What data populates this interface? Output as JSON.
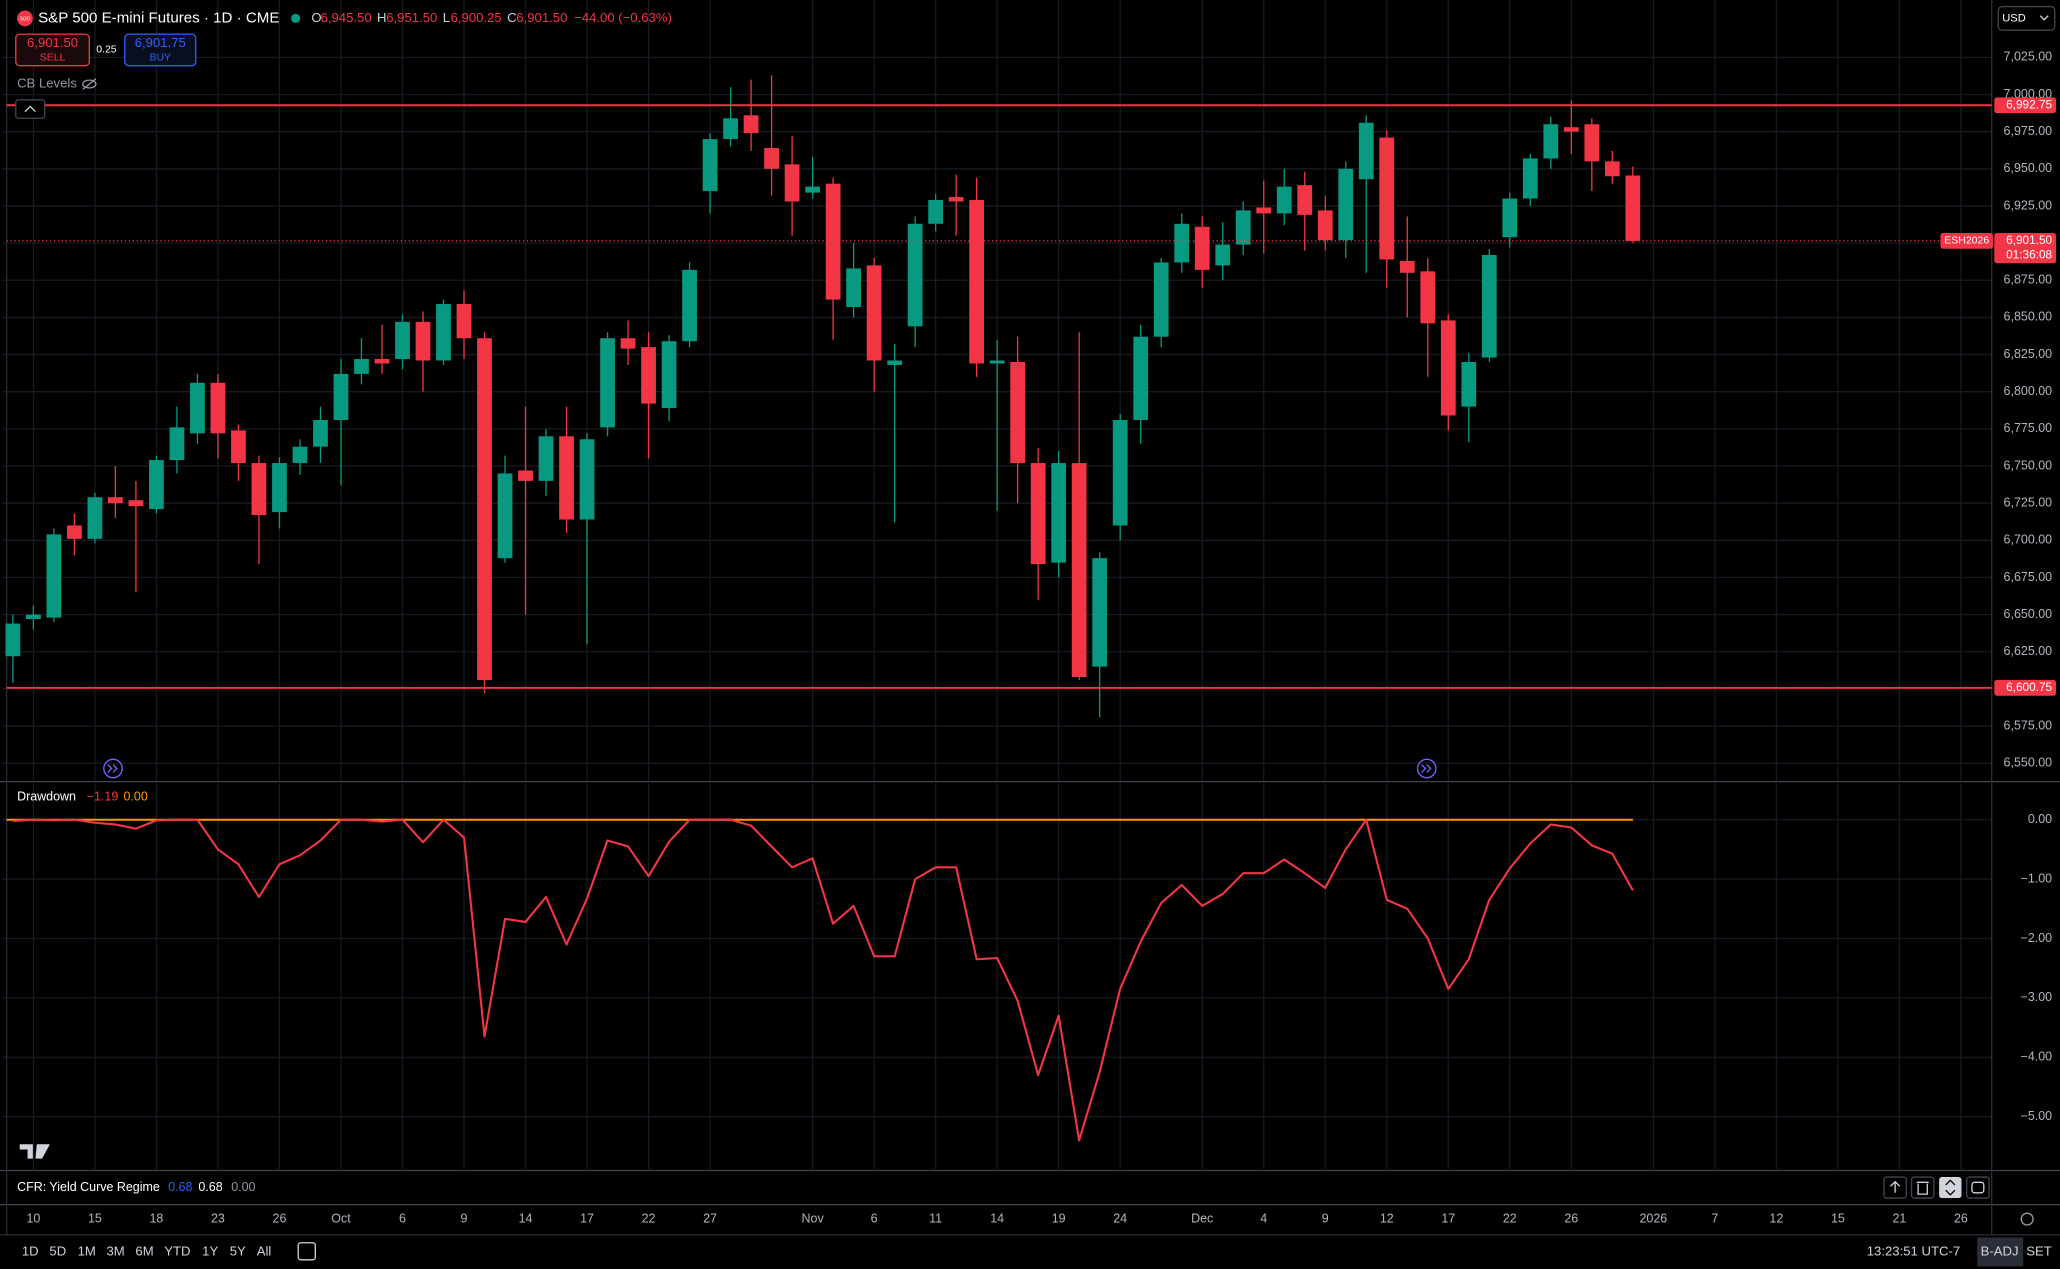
{
  "header": {
    "logo": "500",
    "open_label": "O",
    "open": "6,945.50",
    "high_label": "H",
    "high": "6,951.50",
    "low_label": "L",
    "low": "6,900.25",
    "close_label": "C",
    "close": "6,901.50",
    "change": "−44.00 (−0.63%)",
    "sell_price": "6,901.50",
    "sell": "SELL",
    "spread": "0.25",
    "buy_price": "6,901.75",
    "buy": "BUY",
    "levels": "CB Levels",
    "currency": "USD"
  },
  "indicator": {
    "title": "CFR: Yield Curve Regime",
    "values": [
      "0.68",
      "0.68",
      "0.00"
    ]
  },
  "toolbar": {
    "ranges": [
      "1D",
      "5D",
      "1M",
      "3M",
      "6M",
      "YTD",
      "1Y",
      "5Y",
      "All"
    ],
    "time": "13:23:51 UTC-7",
    "adjust": "B-ADJ",
    "session": "SET"
  },
  "chart_data": [
    {
      "type": "candlestick",
      "title": "S&P 500 E-mini Futures · 1D · CME",
      "categories": [
        null,
        "10",
        null,
        null,
        "15",
        null,
        null,
        "18",
        null,
        null,
        "23",
        null,
        null,
        "26",
        null,
        null,
        "Oct",
        null,
        null,
        "6",
        null,
        null,
        "9",
        null,
        null,
        "14",
        null,
        null,
        "17",
        null,
        null,
        "22",
        null,
        null,
        "27",
        null,
        null,
        null,
        null,
        "Nov",
        null,
        null,
        "6",
        null,
        null,
        "11",
        null,
        null,
        "14",
        null,
        null,
        "19",
        null,
        null,
        "24",
        null,
        null,
        null,
        "Dec",
        null,
        null,
        "4",
        null,
        null,
        "9",
        null,
        null,
        "12",
        null,
        null,
        "17",
        null,
        null,
        "22",
        null,
        null,
        "26",
        null,
        null,
        null,
        "2026",
        null,
        null,
        "7",
        null,
        null,
        "12",
        null,
        null,
        "15",
        null,
        null,
        "21",
        null,
        null,
        "26",
        null
      ],
      "open": [
        6622,
        6647,
        6648,
        6710,
        6701,
        6729,
        6727,
        6721,
        6754,
        6772,
        6806,
        6774,
        6752,
        6719,
        6752,
        6763,
        6781,
        6812,
        6822,
        6822,
        6847,
        6821,
        6859,
        6836,
        6688,
        6747,
        6740,
        6770,
        6714,
        6776,
        6836,
        6830,
        6789,
        6834,
        6935,
        6970,
        6986,
        6964,
        6953,
        6934,
        6940,
        6857,
        6885,
        6818,
        6844,
        6913,
        6931,
        6929,
        6819,
        6820,
        6752,
        6685,
        6752,
        6615,
        6710,
        6781,
        6837,
        6887,
        6911,
        6885,
        6899,
        6924,
        6920,
        6939,
        6922,
        6902,
        6943,
        6971,
        6888,
        6881,
        6848,
        6790,
        6823,
        6904,
        6930,
        6957,
        6978,
        6980,
        6955,
        6945.5,
        null,
        null,
        null,
        null,
        null,
        null,
        null,
        null,
        null,
        null,
        null,
        null,
        null,
        null,
        null,
        null,
        null
      ],
      "high": [
        6650,
        6656,
        6708,
        6718,
        6732,
        6750,
        6740,
        6757,
        6790,
        6812,
        6812,
        6778,
        6757,
        6756,
        6768,
        6790,
        6822,
        6836,
        6845,
        6852,
        6854,
        6862,
        6868,
        6840,
        6757,
        6790,
        6775,
        6790,
        6772,
        6840,
        6848,
        6840,
        6838,
        6887,
        6974,
        7005,
        7010,
        7013,
        6972,
        6958,
        6944,
        6900,
        6890,
        6832,
        6918,
        6933,
        6946,
        6944,
        6835,
        6837,
        6762,
        6760,
        6840,
        6692,
        6785,
        6845,
        6890,
        6920,
        6918,
        6914,
        6928,
        6942,
        6950,
        6948,
        6932,
        6955,
        6986,
        6976,
        6918,
        6890,
        6852,
        6826,
        6896,
        6934,
        6960,
        6985,
        6996,
        6984,
        6962,
        6951.5,
        null,
        null,
        null,
        null,
        null,
        null,
        null,
        null,
        null,
        null,
        null,
        null,
        null,
        null,
        null,
        null,
        null
      ],
      "low": [
        6604,
        6640,
        6645,
        6690,
        6698,
        6715,
        6665,
        6718,
        6745,
        6765,
        6755,
        6740,
        6684,
        6708,
        6744,
        6752,
        6737,
        6805,
        6812,
        6815,
        6800,
        6818,
        6822,
        6597,
        6685,
        6650,
        6730,
        6705,
        6630,
        6770,
        6818,
        6755,
        6780,
        6830,
        6920,
        6965,
        6962,
        6932,
        6905,
        6930,
        6835,
        6850,
        6800,
        6712,
        6830,
        6908,
        6905,
        6810,
        6720,
        6725,
        6660,
        6675,
        6606,
        6581,
        6700,
        6765,
        6830,
        6880,
        6870,
        6875,
        6892,
        6893,
        6912,
        6895,
        6895,
        6890,
        6880,
        6870,
        6850,
        6810,
        6774,
        6766,
        6820,
        6897,
        6925,
        6950,
        6960,
        6935,
        6940,
        6900.25,
        null,
        null,
        null,
        null,
        null,
        null,
        null,
        null,
        null,
        null,
        null,
        null,
        null,
        null,
        null,
        null,
        null
      ],
      "close": [
        6644,
        6650,
        6704,
        6701,
        6729,
        6725,
        6723,
        6754,
        6776,
        6806,
        6772,
        6752,
        6717,
        6752,
        6763,
        6781,
        6812,
        6822,
        6819,
        6847,
        6821,
        6859,
        6836,
        6606,
        6745,
        6740,
        6770,
        6714,
        6768,
        6836,
        6829,
        6792,
        6834,
        6882,
        6970,
        6984,
        6974,
        6950,
        6928,
        6938,
        6862,
        6883,
        6821,
        6821,
        6913,
        6929,
        6928,
        6819,
        6821,
        6752,
        6684,
        6752,
        6608,
        6688,
        6781,
        6837,
        6887,
        6913,
        6882,
        6899,
        6922,
        6920,
        6938,
        6919,
        6902,
        6950,
        6981,
        6889,
        6880,
        6846,
        6784,
        6820,
        6892,
        6930,
        6957,
        6980,
        6975,
        6955,
        6945,
        6901.5,
        null,
        null,
        null,
        null,
        null,
        null,
        null,
        null,
        null,
        null,
        null,
        null,
        null,
        null,
        null,
        null,
        null
      ],
      "up_color": "#089981",
      "down_color": "#f23645",
      "ylim": [
        6538.5,
        7063.6
      ],
      "yticks": [
        {
          "value": 6550,
          "label": "6,550.00"
        },
        {
          "value": 6575,
          "label": "6,575.00"
        },
        {
          "value": 6600,
          "label": "6,600.00"
        },
        {
          "value": 6625,
          "label": "6,625.00"
        },
        {
          "value": 6650,
          "label": "6,650.00"
        },
        {
          "value": 6675,
          "label": "6,675.00"
        },
        {
          "value": 6700,
          "label": "6,700.00"
        },
        {
          "value": 6725,
          "label": "6,725.00"
        },
        {
          "value": 6750,
          "label": "6,750.00"
        },
        {
          "value": 6775,
          "label": "6,775.00"
        },
        {
          "value": 6800,
          "label": "6,800.00"
        },
        {
          "value": 6825,
          "label": "6,825.00"
        },
        {
          "value": 6850,
          "label": "6,850.00"
        },
        {
          "value": 6875,
          "label": "6,875.00"
        },
        {
          "value": 6900,
          "label": "6,900.00"
        },
        {
          "value": 6925,
          "label": "6,925.00"
        },
        {
          "value": 6950,
          "label": "6,950.00"
        },
        {
          "value": 6975,
          "label": "6,975.00"
        },
        {
          "value": 7000,
          "label": "7,000.00"
        },
        {
          "value": 7025,
          "label": "7,025.00"
        }
      ],
      "hlines": [
        {
          "value": 6992.75,
          "label": "6,992.75"
        },
        {
          "value": 6600.75,
          "label": "6,600.75"
        }
      ],
      "hline_color": "#f23645",
      "last_price": {
        "value": 6901.5,
        "label": "6,901.50",
        "symbol": "ESH2026",
        "countdown": "01:36:08"
      },
      "grid": true
    },
    {
      "type": "line",
      "title": "Drawdown",
      "color": "#f23645",
      "values": [
        -0.02,
        0,
        -0.01,
        0,
        -0.05,
        -0.08,
        -0.15,
        -0.01,
        0,
        0,
        -0.5,
        -0.75,
        -1.3,
        -0.75,
        -0.6,
        -0.35,
        0,
        0,
        -0.03,
        0,
        -0.38,
        0,
        -0.3,
        -3.65,
        -1.67,
        -1.72,
        -1.3,
        -2.1,
        -1.33,
        -0.35,
        -0.45,
        -0.95,
        -0.37,
        0,
        0,
        0,
        -0.1,
        -0.45,
        -0.8,
        -0.65,
        -1.75,
        -1.45,
        -2.3,
        -2.3,
        -1.0,
        -0.8,
        -0.8,
        -2.35,
        -2.33,
        -3.05,
        -4.3,
        -3.3,
        -5.4,
        -4.25,
        -2.85,
        -2.05,
        -1.4,
        -1.1,
        -1.45,
        -1.25,
        -0.9,
        -0.9,
        -0.67,
        -0.9,
        -1.15,
        -0.5,
        0,
        -1.35,
        -1.5,
        -2.0,
        -2.85,
        -2.35,
        -1.35,
        -0.82,
        -0.4,
        -0.08,
        -0.13,
        -0.43,
        -0.57,
        -1.19,
        null,
        null,
        null,
        null,
        null,
        null,
        null,
        null,
        null,
        null,
        null,
        null,
        null,
        null,
        null,
        null,
        null
      ],
      "last_value": {
        "value": -1.19,
        "label": "−1.19"
      },
      "reference": {
        "value": 0,
        "label": "0.00",
        "color": "#ff9800"
      },
      "ylim": [
        -5.885,
        0.62
      ],
      "yticks": [
        {
          "value": 0,
          "label": "0.00"
        },
        {
          "value": -1,
          "label": "−1.00"
        },
        {
          "value": -2,
          "label": "−2.00"
        },
        {
          "value": -3,
          "label": "−3.00"
        },
        {
          "value": -4,
          "label": "−4.00"
        },
        {
          "value": -5,
          "label": "−5.00"
        }
      ],
      "grid": true
    }
  ]
}
